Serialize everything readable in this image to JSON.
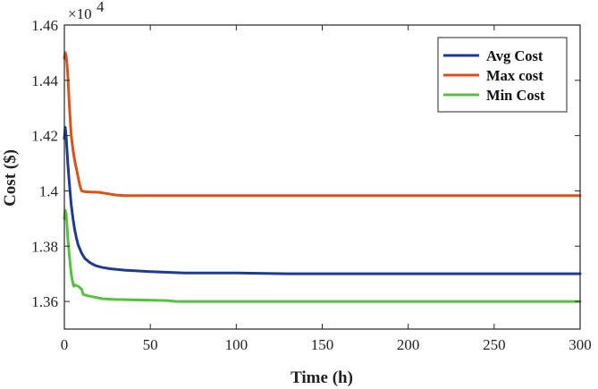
{
  "chart_data": {
    "type": "line",
    "title": "",
    "xlabel": "Time (h)",
    "ylabel": "Cost ($)",
    "xlim": [
      0,
      300
    ],
    "ylim": [
      13500,
      14600
    ],
    "xticks": [
      0,
      50,
      100,
      150,
      200,
      250,
      300
    ],
    "xtick_labels": [
      "0",
      "50",
      "100",
      "150",
      "200",
      "250",
      "300"
    ],
    "yticks": [
      13600,
      13800,
      14000,
      14200,
      14400,
      14600
    ],
    "ytick_labels": [
      "1.36",
      "1.38",
      "1.4",
      "1.42",
      "1.44",
      "1.46"
    ],
    "y_exponent_label": "×10",
    "y_exponent_power": "4",
    "grid": false,
    "legend_position": "top-right",
    "series": [
      {
        "name": "Avg Cost",
        "color": "#1f3a93",
        "x": [
          0,
          0.5,
          1,
          1.5,
          2,
          3,
          4,
          5,
          6,
          7,
          8,
          10,
          12,
          15,
          18,
          22,
          27,
          35,
          50,
          70,
          100,
          130,
          200,
          300
        ],
        "y": [
          14190,
          14230,
          14200,
          14150,
          14100,
          14020,
          13950,
          13900,
          13860,
          13830,
          13805,
          13775,
          13755,
          13740,
          13730,
          13723,
          13718,
          13713,
          13708,
          13703,
          13703,
          13700,
          13700,
          13700
        ]
      },
      {
        "name": "Max cost",
        "color": "#d95319",
        "x": [
          0,
          0.5,
          1,
          1.5,
          2,
          3,
          4,
          5,
          6,
          7,
          8,
          9,
          10,
          12,
          15,
          20,
          25,
          30,
          35,
          50,
          100,
          200,
          300
        ],
        "y": [
          14480,
          14500,
          14490,
          14460,
          14420,
          14300,
          14200,
          14150,
          14110,
          14080,
          14050,
          14020,
          14000,
          13997,
          13996,
          13995,
          13990,
          13985,
          13983,
          13983,
          13983,
          13983,
          13983
        ]
      },
      {
        "name": "Min Cost",
        "color": "#54c23c",
        "x": [
          0,
          0.5,
          1,
          1.5,
          2,
          3,
          4,
          5,
          5.5,
          6,
          8,
          10,
          11,
          14,
          18,
          22,
          30,
          45,
          60,
          65,
          100,
          200,
          300
        ],
        "y": [
          13900,
          13930,
          13920,
          13880,
          13830,
          13760,
          13700,
          13665,
          13655,
          13660,
          13655,
          13645,
          13625,
          13620,
          13615,
          13610,
          13607,
          13605,
          13603,
          13600,
          13600,
          13600,
          13600
        ]
      }
    ]
  }
}
